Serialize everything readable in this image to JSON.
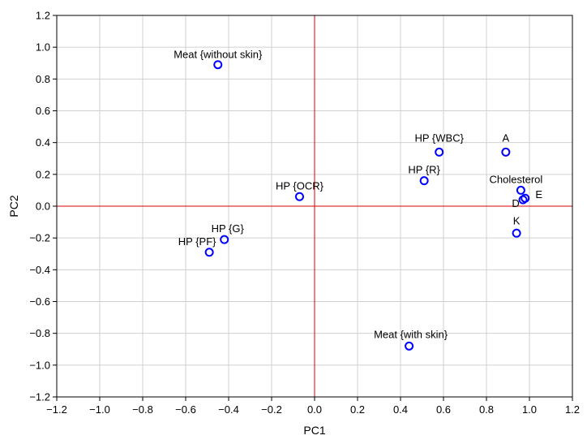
{
  "chart_data": {
    "type": "scatter",
    "title": "",
    "xlabel": "PC1",
    "ylabel": "PC2",
    "xlim": [
      -1.2,
      1.2
    ],
    "ylim": [
      -1.2,
      1.2
    ],
    "xticks": [
      "−1.2",
      "−1.0",
      "−0.8",
      "−0.6",
      "−0.4",
      "−0.2",
      "0.0",
      "0.2",
      "0.4",
      "0.6",
      "0.8",
      "1.0",
      "1.2"
    ],
    "yticks": [
      "1.2",
      "1.0",
      "0.8",
      "0.6",
      "0.4",
      "0.2",
      "0.0",
      "−0.2",
      "−0.4",
      "−0.6",
      "−0.8",
      "−1.0",
      "−1.2"
    ],
    "grid": true,
    "reference_lines": {
      "x": 0,
      "y": 0,
      "color": "#e00000"
    },
    "marker_color": "#0000ff",
    "points": [
      {
        "label": "Meat {without skin}",
        "x": -0.45,
        "y": 0.89
      },
      {
        "label": "HP {WBC}",
        "x": 0.58,
        "y": 0.34
      },
      {
        "label": "A",
        "x": 0.89,
        "y": 0.34
      },
      {
        "label": "HP {R}",
        "x": 0.51,
        "y": 0.16
      },
      {
        "label": "Cholesterol",
        "x": 0.96,
        "y": 0.1
      },
      {
        "label": "HP {OCR}",
        "x": -0.07,
        "y": 0.06
      },
      {
        "label": "D",
        "x": 0.97,
        "y": 0.04
      },
      {
        "label": "E",
        "x": 0.98,
        "y": 0.05
      },
      {
        "label": "K",
        "x": 0.94,
        "y": -0.17
      },
      {
        "label": "HP {G}",
        "x": -0.42,
        "y": -0.21
      },
      {
        "label": "HP {PF}",
        "x": -0.49,
        "y": -0.29
      },
      {
        "label": "Meat {with skin}",
        "x": 0.44,
        "y": -0.88
      }
    ]
  }
}
